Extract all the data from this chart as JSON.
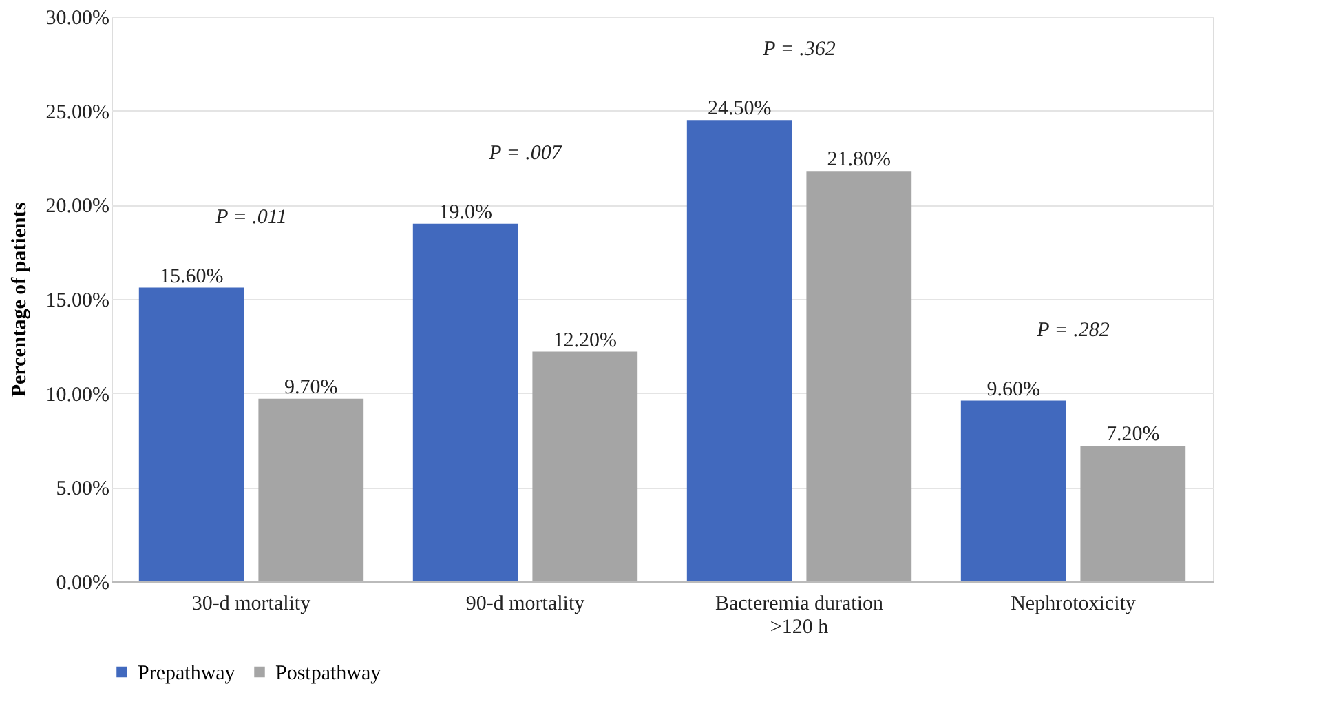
{
  "chart_data": {
    "type": "bar",
    "ylabel": "Percentage of patients",
    "categories": [
      "30-d mortality",
      "90-d mortality",
      "Bacteremia duration\n>120 h",
      "Nephrotoxicity"
    ],
    "series": [
      {
        "name": "Prepathway",
        "color": "#4169be",
        "values": [
          15.6,
          19.0,
          24.5,
          9.6
        ],
        "value_labels": [
          "15.60%",
          "19.0%",
          "24.50%",
          "9.60%"
        ]
      },
      {
        "name": "Postpathway",
        "color": "#a5a5a5",
        "values": [
          9.7,
          12.2,
          21.8,
          7.2
        ],
        "value_labels": [
          "9.70%",
          "12.20%",
          "21.80%",
          "7.20%"
        ]
      }
    ],
    "ylim": [
      0,
      30
    ],
    "yticks": [
      {
        "value": 0,
        "label": "0.00%"
      },
      {
        "value": 5,
        "label": "5.00%"
      },
      {
        "value": 10,
        "label": "10.00%"
      },
      {
        "value": 15,
        "label": "15.00%"
      },
      {
        "value": 20,
        "label": "20.00%"
      },
      {
        "value": 25,
        "label": "25.00%"
      },
      {
        "value": 30,
        "label": "30.00%"
      }
    ],
    "grid": "y",
    "legend": "bottom",
    "annotations": [
      "P = .011",
      "P = .007",
      "P = .362",
      "P = .282"
    ]
  }
}
